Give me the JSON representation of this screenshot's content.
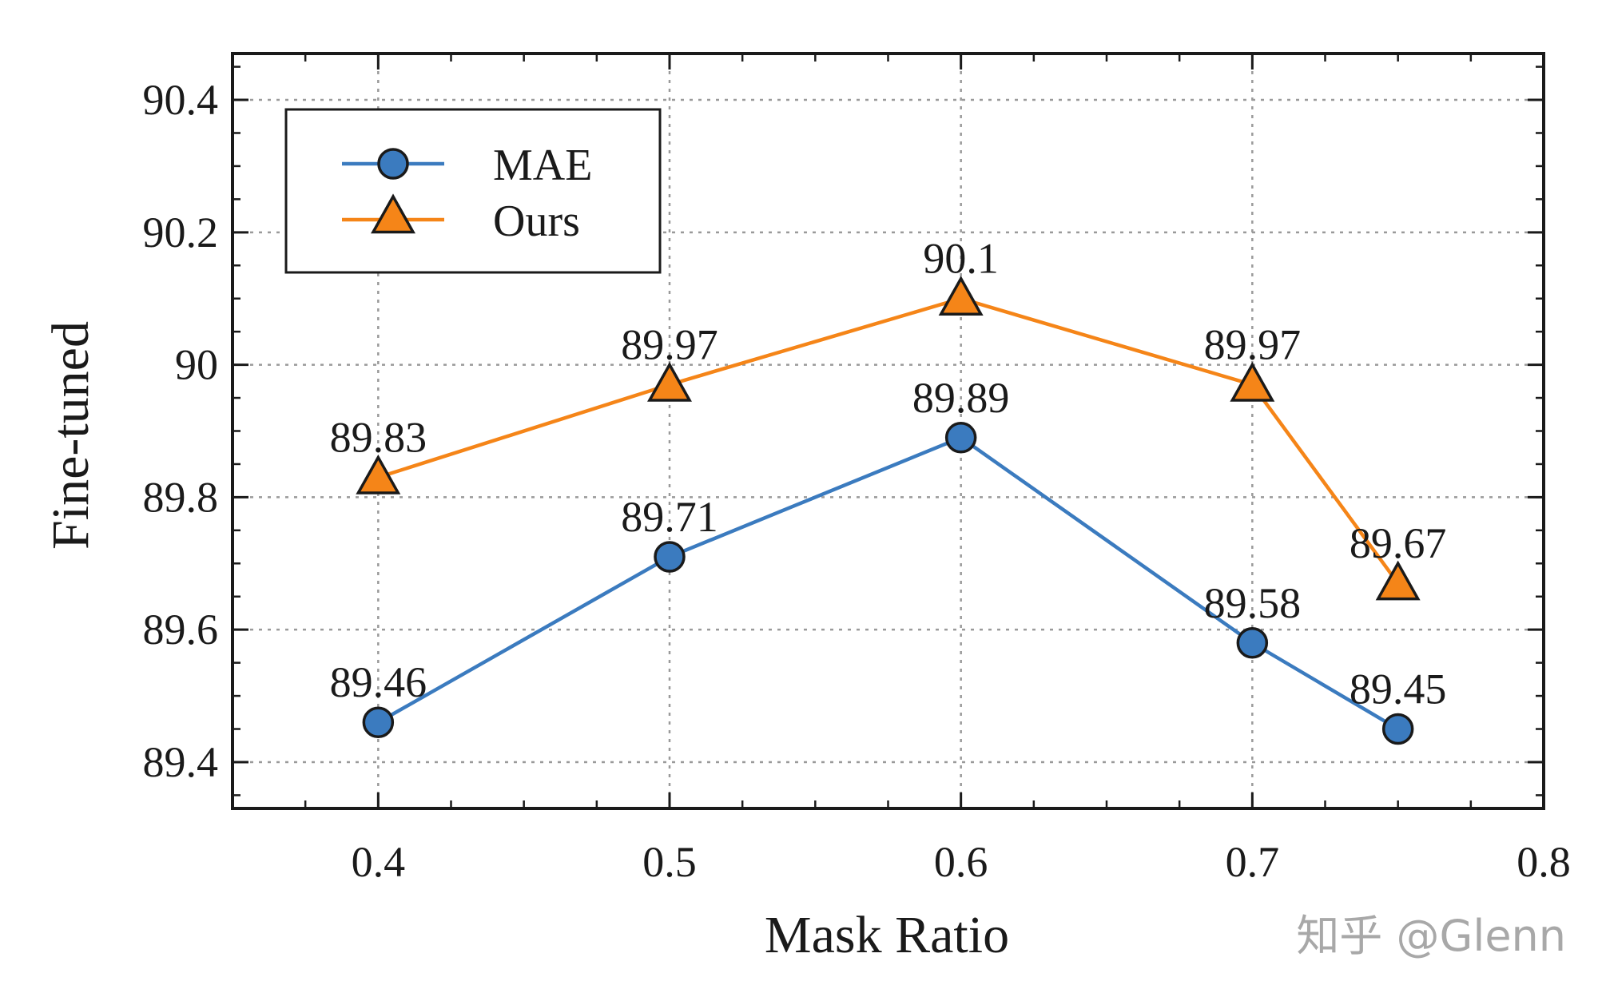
{
  "chart_data": {
    "type": "line",
    "xlabel": "Mask Ratio",
    "ylabel": "Fine-tuned",
    "xlim": [
      0.35,
      0.8
    ],
    "ylim": [
      89.33,
      90.47
    ],
    "xticks": [
      0.4,
      0.5,
      0.6,
      0.7,
      0.8
    ],
    "xtick_labels": [
      "0.4",
      "0.5",
      "0.6",
      "0.7",
      "0.8"
    ],
    "yticks": [
      89.4,
      89.6,
      89.8,
      90.0,
      90.2,
      90.4
    ],
    "ytick_labels": [
      "89.4",
      "89.6",
      "89.8",
      "90",
      "90.2",
      "90.4"
    ],
    "grid": true,
    "legend_position": "top-left",
    "series": [
      {
        "name": "MAE",
        "marker": "circle",
        "color": "#3b7bbf",
        "x": [
          0.4,
          0.5,
          0.6,
          0.7,
          0.75
        ],
        "y": [
          89.46,
          89.71,
          89.89,
          89.58,
          89.45
        ],
        "labels": [
          "89.46",
          "89.71",
          "89.89",
          "89.58",
          "89.45"
        ]
      },
      {
        "name": "Ours",
        "marker": "triangle",
        "color": "#f58518",
        "x": [
          0.4,
          0.5,
          0.6,
          0.7,
          0.75
        ],
        "y": [
          89.83,
          89.97,
          90.1,
          89.97,
          89.67
        ],
        "labels": [
          "89.83",
          "89.97",
          "90.1",
          "89.97",
          "89.67"
        ]
      }
    ]
  },
  "watermark": "知乎 @Glenn"
}
